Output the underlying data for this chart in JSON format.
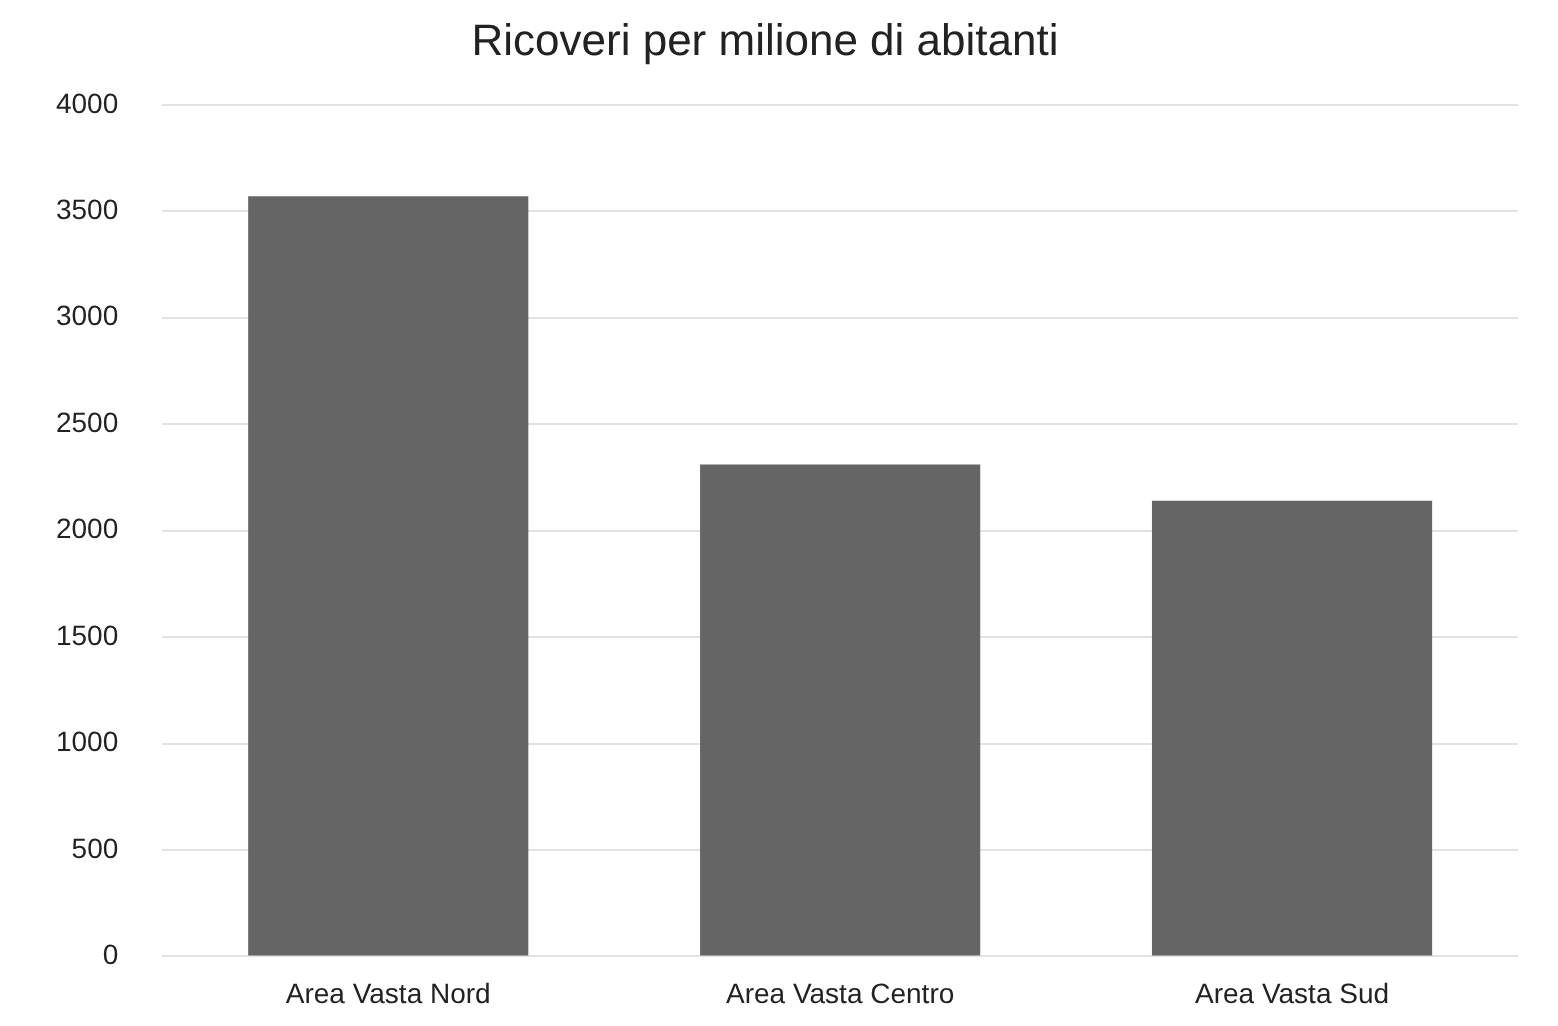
{
  "chart_data": {
    "type": "bar",
    "title": "Ricoveri per milione di abitanti",
    "categories": [
      "Area Vasta Nord",
      "Area Vasta Centro",
      "Area Vasta Sud"
    ],
    "values": [
      3570,
      2310,
      2140
    ],
    "color": "#656565",
    "ylim": [
      0,
      4000
    ],
    "yticks": [
      0,
      500,
      1000,
      1500,
      2000,
      2500,
      3000,
      3500,
      4000
    ],
    "grid": "y",
    "legend": false
  }
}
